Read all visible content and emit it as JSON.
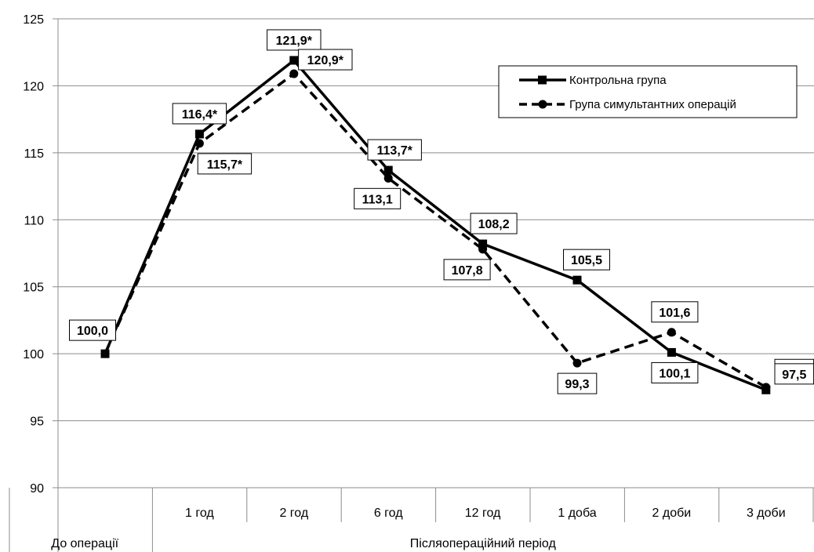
{
  "chart_data": {
    "type": "line",
    "title": "",
    "xlabel": "",
    "ylabel": "",
    "ylim": [
      90,
      125
    ],
    "yticks": [
      90,
      95,
      100,
      105,
      110,
      115,
      120,
      125
    ],
    "grid": "horizontal",
    "legend_position": "top-right",
    "categories": [
      "До операції",
      "1 год",
      "2 год",
      "6 год",
      "12 год",
      "1 доба",
      "2 доби",
      "3 доби"
    ],
    "group_labels": [
      {
        "label": "До операції",
        "span": [
          0,
          0
        ]
      },
      {
        "label": "Післяопераційний період",
        "span": [
          1,
          7
        ]
      }
    ],
    "series": [
      {
        "name": "Контрольна група",
        "style": "solid",
        "marker": "square",
        "color": "#000000",
        "values": [
          100.0,
          116.4,
          121.9,
          113.7,
          108.2,
          105.5,
          100.1,
          97.3
        ],
        "labels": [
          "100,0",
          "116,4*",
          "121,9*",
          "113,7*",
          "108,2",
          "105,5",
          "100,1",
          "97,3"
        ]
      },
      {
        "name": "Група симультантних операцій",
        "style": "dashed",
        "marker": "circle",
        "color": "#000000",
        "values": [
          100.0,
          115.7,
          120.9,
          113.1,
          107.8,
          99.3,
          101.6,
          97.5
        ],
        "labels": [
          "",
          "115,7*",
          "120,9*",
          "113,1",
          "107,8",
          "99,3",
          "101,6",
          "97,5"
        ]
      }
    ]
  }
}
